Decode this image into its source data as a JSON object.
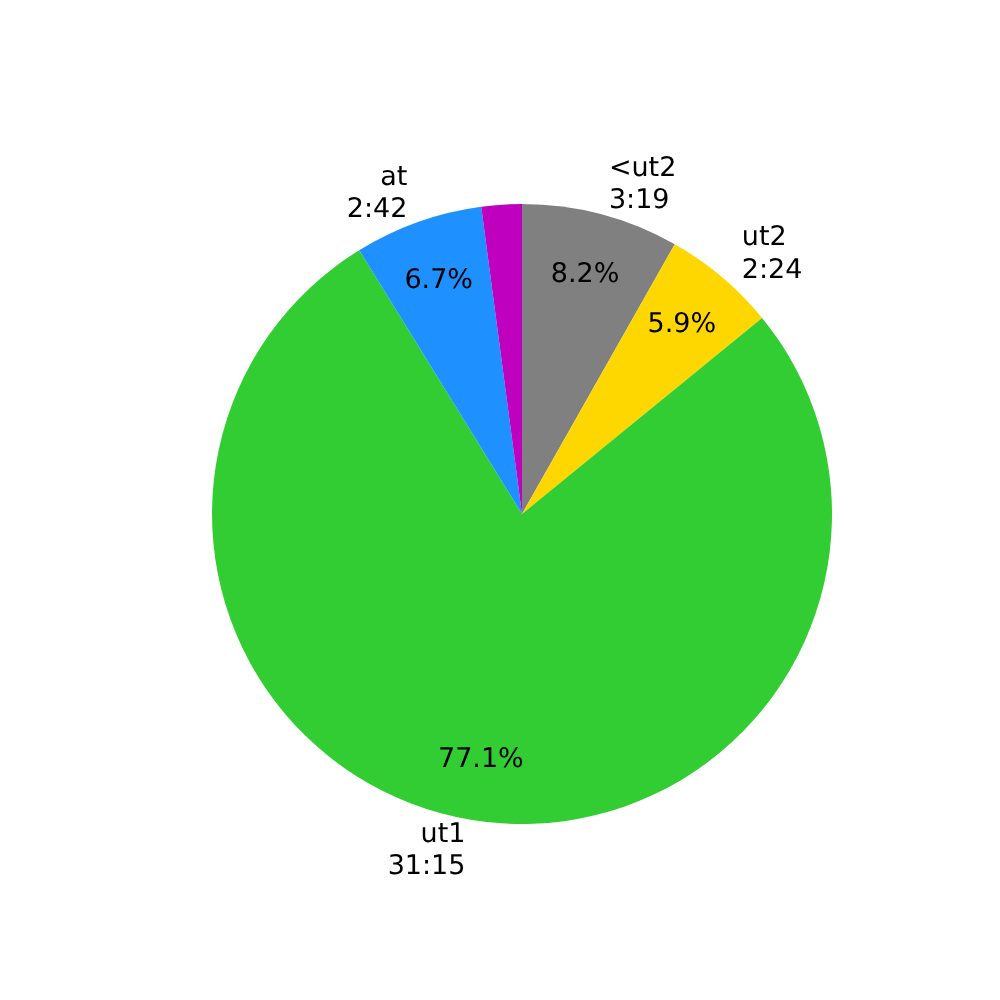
{
  "chart_data": {
    "type": "pie",
    "categories": [
      "<ut2\n3:19",
      "ut2\n2:24",
      "ut1\n31:15",
      "at\n2:42",
      null
    ],
    "values": [
      8.2,
      5.9,
      77.1,
      6.7,
      2.1
    ],
    "colors": [
      "#808080",
      "#ffd700",
      "#32cd32",
      "#1e90ff",
      "#bf00bf"
    ],
    "value_labels": [
      "8.2%",
      "5.9%",
      "77.1%",
      "6.7%",
      null
    ]
  }
}
